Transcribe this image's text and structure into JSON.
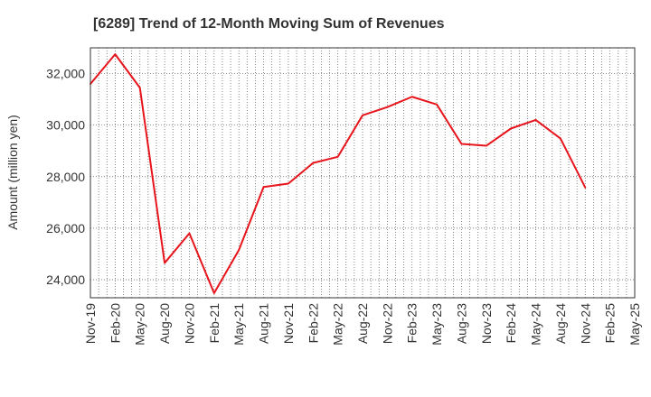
{
  "chart_data": {
    "type": "line",
    "title": "[6289]  Trend of 12-Month Moving Sum of Revenues",
    "ylabel": "Amount (million yen)",
    "xlabel": "",
    "ylim": [
      23300,
      33000
    ],
    "yticks": [
      24000,
      26000,
      28000,
      30000,
      32000
    ],
    "ytick_labels": [
      "24,000",
      "26,000",
      "28,000",
      "30,000",
      "32,000"
    ],
    "x_tick_labels": [
      "Nov-19",
      "Feb-20",
      "May-20",
      "Aug-20",
      "Nov-20",
      "Feb-21",
      "May-21",
      "Aug-21",
      "Nov-21",
      "Feb-22",
      "May-22",
      "Aug-22",
      "Nov-22",
      "Feb-23",
      "May-23",
      "Aug-23",
      "Nov-23",
      "Feb-24",
      "May-24",
      "Aug-24",
      "Nov-24",
      "Feb-25",
      "May-25"
    ],
    "x_months": 67,
    "grid": true,
    "series": [
      {
        "color": "#e8141b",
        "points": [
          [
            "Nov-19",
            31600
          ],
          [
            "Feb-20",
            32750
          ],
          [
            "May-20",
            31450
          ],
          [
            "Aug-20",
            24650
          ],
          [
            "Nov-20",
            25800
          ],
          [
            "Feb-21",
            23480
          ],
          [
            "May-21",
            25150
          ],
          [
            "Aug-21",
            27600
          ],
          [
            "Nov-21",
            27730
          ],
          [
            "Feb-22",
            28530
          ],
          [
            "May-22",
            28770
          ],
          [
            "Aug-22",
            30380
          ],
          [
            "Nov-22",
            30700
          ],
          [
            "Feb-23",
            31100
          ],
          [
            "May-23",
            30800
          ],
          [
            "Aug-23",
            29270
          ],
          [
            "Nov-23",
            29200
          ],
          [
            "Feb-24",
            29870
          ],
          [
            "May-24",
            30200
          ],
          [
            "Aug-24",
            29480
          ],
          [
            "Nov-24",
            27580
          ]
        ]
      }
    ]
  },
  "colors": {
    "line": "#e8141b",
    "grid": "#555555",
    "axis": "#333333",
    "text": "#333333"
  }
}
